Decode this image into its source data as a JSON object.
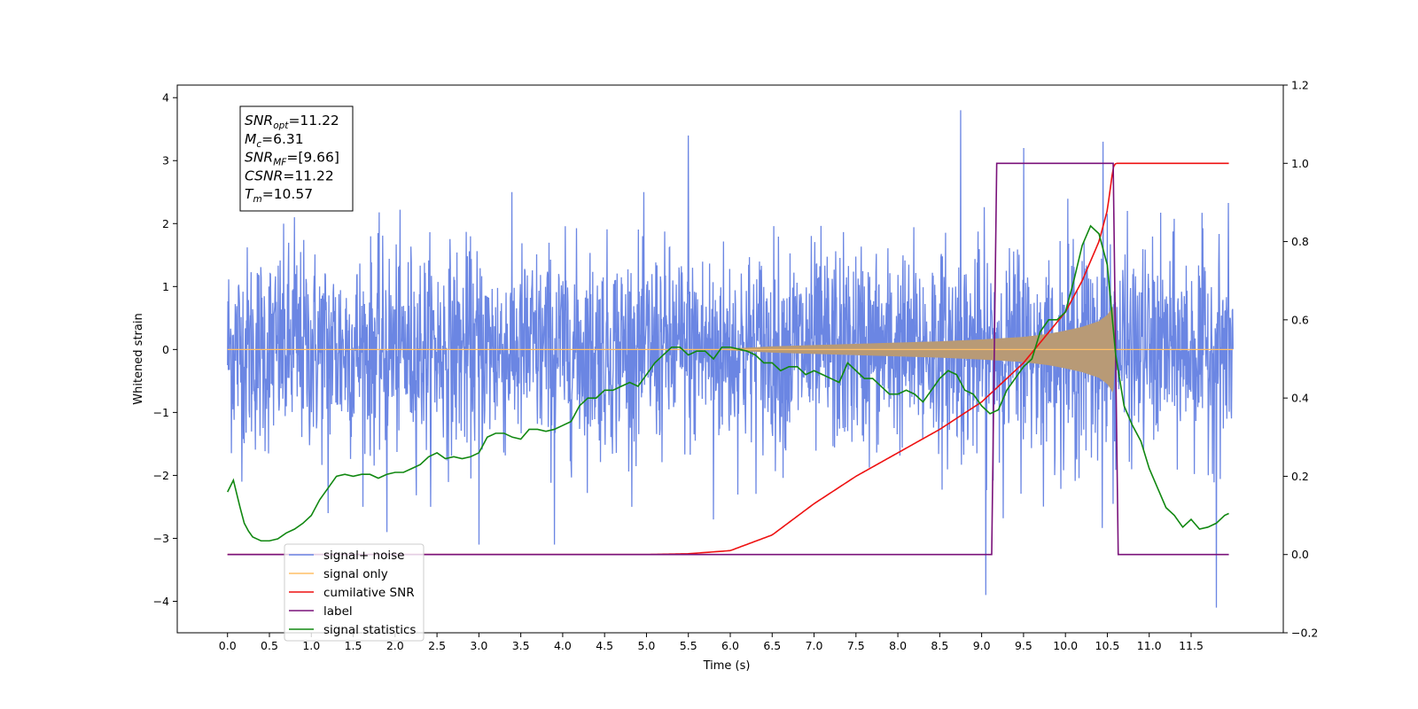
{
  "chart_data": {
    "type": "line",
    "xlabel": "Time (s)",
    "ylabel_left": "Whitened strain",
    "ylabel_right": "",
    "xlim": [
      -0.6,
      12.6
    ],
    "ylim_left": [
      -4.5,
      4.2
    ],
    "ylim_right": [
      -0.2,
      1.2
    ],
    "x_ticks": [
      0.0,
      0.5,
      1.0,
      1.5,
      2.0,
      2.5,
      3.0,
      3.5,
      4.0,
      4.5,
      5.0,
      5.5,
      6.0,
      6.5,
      7.0,
      7.5,
      8.0,
      8.5,
      9.0,
      9.5,
      10.0,
      10.5,
      11.0,
      11.5
    ],
    "x_tick_labels": [
      "0.0",
      "0.5",
      "1.0",
      "1.5",
      "2.0",
      "2.5",
      "3.0",
      "3.5",
      "4.0",
      "4.5",
      "5.0",
      "5.5",
      "6.0",
      "6.5",
      "7.0",
      "7.5",
      "8.0",
      "8.5",
      "9.0",
      "9.5",
      "10.0",
      "10.5",
      "11.0",
      "11.5"
    ],
    "y_left_ticks": [
      4,
      3,
      2,
      1,
      0,
      -1,
      -2,
      -3,
      -4
    ],
    "y_left_tick_labels": [
      "4",
      "3",
      "2",
      "1",
      "0",
      "−1",
      "−2",
      "−3",
      "−4"
    ],
    "y_right_ticks": [
      1.2,
      1.0,
      0.8,
      0.6,
      0.4,
      0.2,
      0.0,
      -0.2
    ],
    "y_right_tick_labels": [
      "1.2",
      "1.0",
      "0.8",
      "0.6",
      "0.4",
      "0.2",
      "0.0",
      "−0.2"
    ],
    "legend": {
      "placement": "lower-left",
      "entries": [
        {
          "label": "signal+ noise",
          "color": "#6b86e3"
        },
        {
          "label": "signal only",
          "color": "#ffbf66"
        },
        {
          "label": "cumilative SNR",
          "color": "#ee1111"
        },
        {
          "label": "label",
          "color": "#7a127a"
        },
        {
          "label": "signal statistics",
          "color": "#118811"
        }
      ]
    },
    "annotation": {
      "lines": [
        {
          "base": "SNR",
          "sub": "opt",
          "value": "=11.22"
        },
        {
          "base": "M",
          "sub": "c",
          "value": "=6.31"
        },
        {
          "base": "SNR",
          "sub": "MF",
          "value": "=[9.66]"
        },
        {
          "base": "CSNR",
          "sub": "",
          "value": "=11.22"
        },
        {
          "base": "T",
          "sub": "m",
          "value": "=10.57"
        }
      ]
    },
    "series": [
      {
        "name": "signal+ noise",
        "axis": "left",
        "color": "#6b86e3",
        "x_range": [
          0.0,
          12.0
        ],
        "typical_amplitude": 1.7,
        "spikes": [
          [
            0.8,
            2.1
          ],
          [
            1.2,
            -2.6
          ],
          [
            1.9,
            -2.9
          ],
          [
            3.0,
            -3.1
          ],
          [
            3.9,
            -3.1
          ],
          [
            5.5,
            3.4
          ],
          [
            5.8,
            -2.7
          ],
          [
            8.75,
            3.8
          ],
          [
            9.05,
            -3.9
          ],
          [
            9.5,
            3.2
          ],
          [
            10.45,
            3.3
          ],
          [
            11.8,
            -4.1
          ]
        ]
      },
      {
        "name": "signal only",
        "axis": "left",
        "color": "#ffbf66",
        "fill_color": "#b89a76",
        "x": [
          0.0,
          5.8,
          6.5,
          7.0,
          7.5,
          8.0,
          8.5,
          9.0,
          9.5,
          9.8,
          10.0,
          10.2,
          10.4,
          10.5,
          10.55,
          10.57,
          10.6,
          12.0
        ],
        "envelope": [
          0.0,
          0.0,
          0.05,
          0.07,
          0.09,
          0.11,
          0.13,
          0.16,
          0.2,
          0.25,
          0.3,
          0.36,
          0.45,
          0.55,
          0.65,
          0.72,
          0.0,
          0.0
        ]
      },
      {
        "name": "cumilative SNR",
        "axis": "right",
        "color": "#ee1111",
        "x": [
          0.0,
          5.0,
          5.5,
          6.0,
          6.5,
          7.0,
          7.5,
          8.0,
          8.5,
          9.0,
          9.5,
          10.0,
          10.2,
          10.4,
          10.5,
          10.57,
          10.6,
          11.95
        ],
        "values": [
          0.0,
          0.0,
          0.002,
          0.01,
          0.05,
          0.13,
          0.2,
          0.26,
          0.32,
          0.39,
          0.49,
          0.62,
          0.7,
          0.8,
          0.88,
          0.99,
          1.0,
          1.0
        ]
      },
      {
        "name": "label",
        "axis": "right",
        "color": "#7a127a",
        "x": [
          0.0,
          9.12,
          9.18,
          10.57,
          10.63,
          11.95
        ],
        "values": [
          0.0,
          0.0,
          1.0,
          1.0,
          0.0,
          0.0
        ]
      },
      {
        "name": "signal statistics",
        "axis": "right",
        "color": "#118811",
        "x": [
          0.0,
          0.07,
          0.15,
          0.2,
          0.25,
          0.3,
          0.35,
          0.4,
          0.5,
          0.6,
          0.7,
          0.8,
          0.9,
          1.0,
          1.1,
          1.2,
          1.3,
          1.4,
          1.5,
          1.6,
          1.7,
          1.8,
          1.9,
          2.0,
          2.1,
          2.2,
          2.3,
          2.4,
          2.5,
          2.6,
          2.7,
          2.8,
          2.9,
          3.0,
          3.1,
          3.2,
          3.3,
          3.4,
          3.5,
          3.6,
          3.7,
          3.8,
          3.9,
          4.0,
          4.1,
          4.2,
          4.3,
          4.4,
          4.5,
          4.6,
          4.7,
          4.8,
          4.9,
          5.0,
          5.1,
          5.2,
          5.3,
          5.4,
          5.5,
          5.6,
          5.7,
          5.8,
          5.9,
          6.0,
          6.1,
          6.2,
          6.3,
          6.4,
          6.5,
          6.6,
          6.7,
          6.8,
          6.9,
          7.0,
          7.1,
          7.2,
          7.3,
          7.4,
          7.5,
          7.6,
          7.7,
          7.8,
          7.9,
          8.0,
          8.1,
          8.2,
          8.3,
          8.4,
          8.5,
          8.6,
          8.7,
          8.8,
          8.9,
          9.0,
          9.1,
          9.2,
          9.3,
          9.4,
          9.5,
          9.6,
          9.7,
          9.8,
          9.9,
          10.0,
          10.1,
          10.2,
          10.3,
          10.4,
          10.5,
          10.6,
          10.7,
          10.8,
          10.9,
          11.0,
          11.1,
          11.2,
          11.3,
          11.4,
          11.5,
          11.6,
          11.7,
          11.8,
          11.9,
          11.95
        ],
        "values": [
          0.16,
          0.19,
          0.12,
          0.08,
          0.06,
          0.045,
          0.04,
          0.035,
          0.035,
          0.04,
          0.055,
          0.065,
          0.08,
          0.1,
          0.14,
          0.17,
          0.2,
          0.205,
          0.2,
          0.205,
          0.205,
          0.195,
          0.205,
          0.21,
          0.21,
          0.22,
          0.23,
          0.25,
          0.26,
          0.245,
          0.25,
          0.245,
          0.25,
          0.26,
          0.3,
          0.31,
          0.31,
          0.3,
          0.295,
          0.32,
          0.32,
          0.315,
          0.32,
          0.33,
          0.34,
          0.38,
          0.4,
          0.4,
          0.42,
          0.42,
          0.43,
          0.44,
          0.43,
          0.46,
          0.49,
          0.51,
          0.53,
          0.53,
          0.51,
          0.52,
          0.52,
          0.5,
          0.53,
          0.53,
          0.525,
          0.52,
          0.51,
          0.49,
          0.49,
          0.47,
          0.48,
          0.48,
          0.46,
          0.47,
          0.46,
          0.45,
          0.44,
          0.49,
          0.47,
          0.45,
          0.45,
          0.43,
          0.41,
          0.41,
          0.42,
          0.41,
          0.39,
          0.42,
          0.45,
          0.47,
          0.46,
          0.42,
          0.41,
          0.38,
          0.36,
          0.37,
          0.42,
          0.45,
          0.48,
          0.5,
          0.57,
          0.6,
          0.6,
          0.62,
          0.7,
          0.79,
          0.84,
          0.82,
          0.74,
          0.51,
          0.38,
          0.33,
          0.29,
          0.22,
          0.17,
          0.12,
          0.1,
          0.07,
          0.09,
          0.065,
          0.07,
          0.08,
          0.1,
          0.105
        ]
      }
    ]
  }
}
